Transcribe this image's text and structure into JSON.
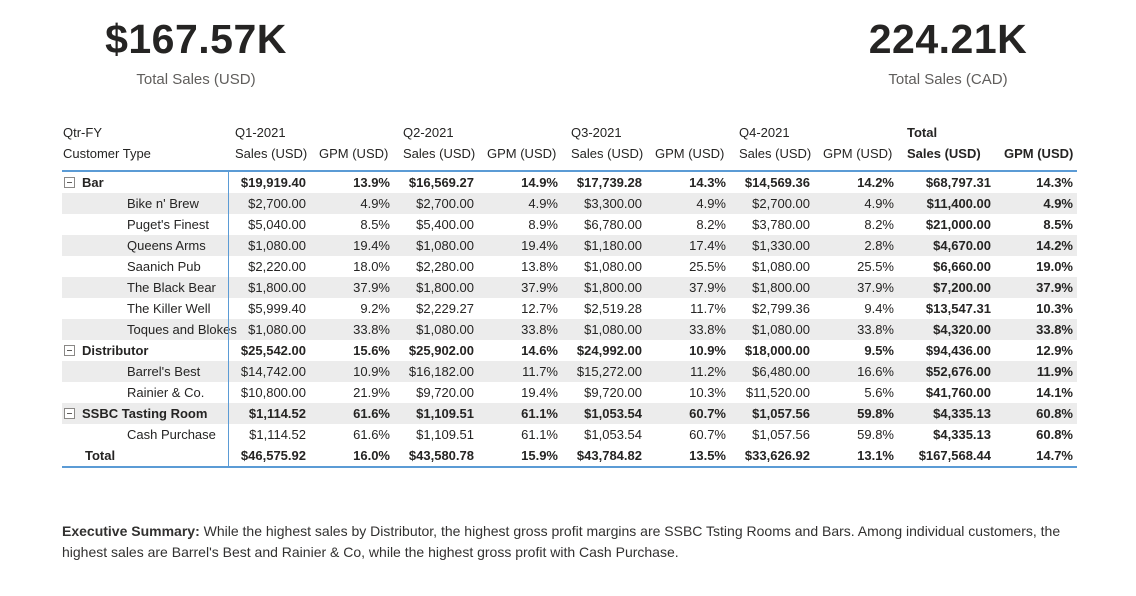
{
  "kpi_left": {
    "value": "$167.57K",
    "label": "Total Sales (USD)"
  },
  "kpi_right": {
    "value": "224.21K",
    "label": "Total Sales (CAD)"
  },
  "matrix": {
    "corner_line1": "Qtr-FY",
    "corner_line2": "Customer Type",
    "groups": [
      {
        "label": "Q1-2021",
        "bold": false
      },
      {
        "label": "Q2-2021",
        "bold": false
      },
      {
        "label": "Q3-2021",
        "bold": false
      },
      {
        "label": "Q4-2021",
        "bold": false
      },
      {
        "label": "Total",
        "bold": true
      }
    ],
    "subcols": [
      "Sales (USD)",
      "GPM (USD)"
    ],
    "rows": [
      {
        "label": "Bar",
        "type": "parent",
        "shaded": false,
        "cells": [
          "$19,919.40",
          "13.9%",
          "$16,569.27",
          "14.9%",
          "$17,739.28",
          "14.3%",
          "$14,569.36",
          "14.2%",
          "$68,797.31",
          "14.3%"
        ]
      },
      {
        "label": "Bike n' Brew",
        "type": "child",
        "shaded": true,
        "cells": [
          "$2,700.00",
          "4.9%",
          "$2,700.00",
          "4.9%",
          "$3,300.00",
          "4.9%",
          "$2,700.00",
          "4.9%",
          "$11,400.00",
          "4.9%"
        ]
      },
      {
        "label": "Puget's Finest",
        "type": "child",
        "shaded": false,
        "cells": [
          "$5,040.00",
          "8.5%",
          "$5,400.00",
          "8.9%",
          "$6,780.00",
          "8.2%",
          "$3,780.00",
          "8.2%",
          "$21,000.00",
          "8.5%"
        ]
      },
      {
        "label": "Queens Arms",
        "type": "child",
        "shaded": true,
        "cells": [
          "$1,080.00",
          "19.4%",
          "$1,080.00",
          "19.4%",
          "$1,180.00",
          "17.4%",
          "$1,330.00",
          "2.8%",
          "$4,670.00",
          "14.2%"
        ]
      },
      {
        "label": "Saanich Pub",
        "type": "child",
        "shaded": false,
        "cells": [
          "$2,220.00",
          "18.0%",
          "$2,280.00",
          "13.8%",
          "$1,080.00",
          "25.5%",
          "$1,080.00",
          "25.5%",
          "$6,660.00",
          "19.0%"
        ]
      },
      {
        "label": "The Black Bear",
        "type": "child",
        "shaded": true,
        "cells": [
          "$1,800.00",
          "37.9%",
          "$1,800.00",
          "37.9%",
          "$1,800.00",
          "37.9%",
          "$1,800.00",
          "37.9%",
          "$7,200.00",
          "37.9%"
        ]
      },
      {
        "label": "The Killer Well",
        "type": "child",
        "shaded": false,
        "cells": [
          "$5,999.40",
          "9.2%",
          "$2,229.27",
          "12.7%",
          "$2,519.28",
          "11.7%",
          "$2,799.36",
          "9.4%",
          "$13,547.31",
          "10.3%"
        ]
      },
      {
        "label": "Toques and Blokes",
        "type": "child",
        "shaded": true,
        "cells": [
          "$1,080.00",
          "33.8%",
          "$1,080.00",
          "33.8%",
          "$1,080.00",
          "33.8%",
          "$1,080.00",
          "33.8%",
          "$4,320.00",
          "33.8%"
        ]
      },
      {
        "label": "Distributor",
        "type": "parent",
        "shaded": false,
        "cells": [
          "$25,542.00",
          "15.6%",
          "$25,902.00",
          "14.6%",
          "$24,992.00",
          "10.9%",
          "$18,000.00",
          "9.5%",
          "$94,436.00",
          "12.9%"
        ]
      },
      {
        "label": "Barrel's Best",
        "type": "child",
        "shaded": true,
        "cells": [
          "$14,742.00",
          "10.9%",
          "$16,182.00",
          "11.7%",
          "$15,272.00",
          "11.2%",
          "$6,480.00",
          "16.6%",
          "$52,676.00",
          "11.9%"
        ]
      },
      {
        "label": "Rainier & Co.",
        "type": "child",
        "shaded": false,
        "cells": [
          "$10,800.00",
          "21.9%",
          "$9,720.00",
          "19.4%",
          "$9,720.00",
          "10.3%",
          "$11,520.00",
          "5.6%",
          "$41,760.00",
          "14.1%"
        ]
      },
      {
        "label": "SSBC Tasting Room",
        "type": "parent",
        "shaded": true,
        "cells": [
          "$1,114.52",
          "61.6%",
          "$1,109.51",
          "61.1%",
          "$1,053.54",
          "60.7%",
          "$1,057.56",
          "59.8%",
          "$4,335.13",
          "60.8%"
        ]
      },
      {
        "label": "Cash Purchase",
        "type": "child",
        "shaded": false,
        "cells": [
          "$1,114.52",
          "61.6%",
          "$1,109.51",
          "61.1%",
          "$1,053.54",
          "60.7%",
          "$1,057.56",
          "59.8%",
          "$4,335.13",
          "60.8%"
        ]
      },
      {
        "label": "Total",
        "type": "total",
        "shaded": false,
        "cells": [
          "$46,575.92",
          "16.0%",
          "$43,580.78",
          "15.9%",
          "$43,784.82",
          "13.5%",
          "$33,626.92",
          "13.1%",
          "$167,568.44",
          "14.7%"
        ]
      }
    ]
  },
  "summary": {
    "title": "Executive Summary:",
    "text": " While the highest sales by Distributor, the highest gross profit margins are SSBC Tsting Rooms and Bars. Among individual customers, the highest sales are Barrel's Best and Rainier & Co, while the highest gross profit with Cash Purchase."
  },
  "colors": {
    "accent_blue": "#5B9BD5",
    "row_alt": "#ECECEC",
    "label_gray": "#605E5C"
  }
}
